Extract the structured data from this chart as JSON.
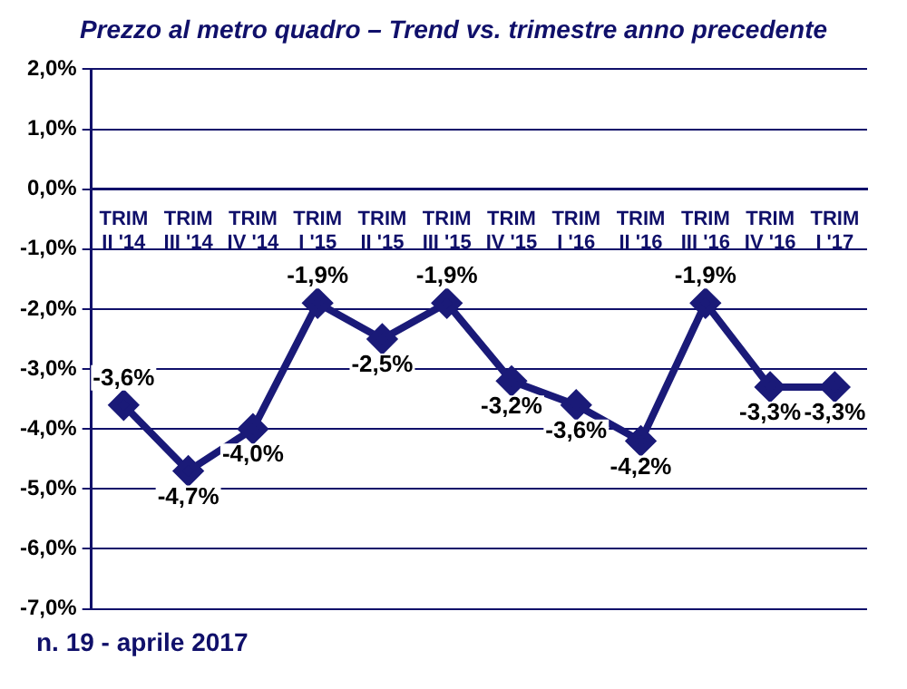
{
  "chart_data": {
    "type": "line",
    "title": "Prezzo al metro quadro – Trend vs. trimestre anno precedente",
    "categories": [
      "TRIM II '14",
      "TRIM III '14",
      "TRIM IV '14",
      "TRIM I '15",
      "TRIM II '15",
      "TRIM III '15",
      "TRIM IV '15",
      "TRIM I '16",
      "TRIM II '16",
      "TRIM III '16",
      "TRIM IV '16",
      "TRIM I '17"
    ],
    "series": [
      {
        "color": "#1a1a78",
        "values": [
          -3.6,
          -4.7,
          -4.0,
          -1.9,
          -2.5,
          -1.9,
          -3.2,
          -3.6,
          -4.2,
          -1.9,
          -3.3,
          -3.3
        ],
        "value_labels": [
          "-3,6%",
          "-4,7%",
          "-4,0%",
          "-1,9%",
          "-2,5%",
          "-1,9%",
          "-3,2%",
          "-3,6%",
          "-4,2%",
          "-1,9%",
          "-3,3%",
          "-3,3%"
        ]
      }
    ],
    "ylim": [
      -7,
      2
    ],
    "yticks": [
      {
        "value": 2,
        "label": "2,0%"
      },
      {
        "value": 1,
        "label": "1,0%"
      },
      {
        "value": 0,
        "label": "0,0%"
      },
      {
        "value": -1,
        "label": "-1,0%"
      },
      {
        "value": -2,
        "label": "-2,0%"
      },
      {
        "value": -3,
        "label": "-3,0%"
      },
      {
        "value": -4,
        "label": "-4,0%"
      },
      {
        "value": -5,
        "label": "-5,0%"
      },
      {
        "value": -6,
        "label": "-6,0%"
      },
      {
        "value": -7,
        "label": "-7,0%"
      }
    ],
    "grid": "y",
    "legend": false,
    "marker": "diamond",
    "line_style": "solid",
    "annotations": [
      "n. 19 - aprile 2017"
    ]
  }
}
